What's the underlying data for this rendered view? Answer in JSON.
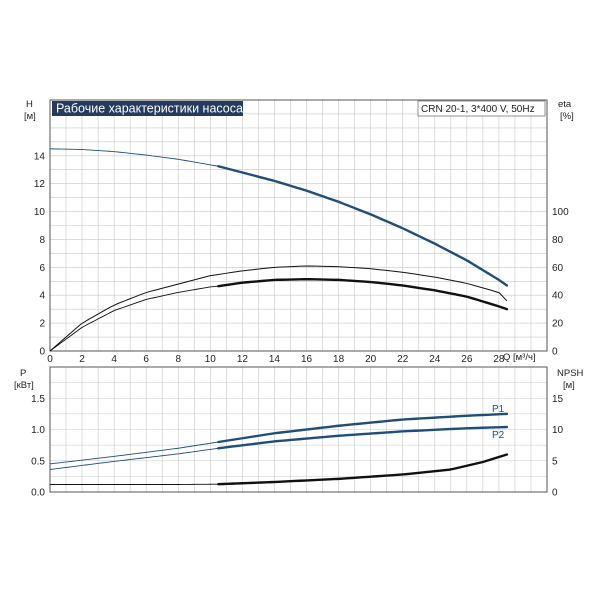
{
  "title": "Рабочие характеристики насоса",
  "model": "CRN 20-1, 3*400 V, 50Hz",
  "colors": {
    "accent": "#1f4e79",
    "black": "#111111",
    "grid": "#c8c8c8",
    "title_bg": "#243a5e"
  },
  "axes": {
    "top_left": {
      "name": "H",
      "unit": "[м]",
      "ticks": [
        "0",
        "2",
        "4",
        "6",
        "8",
        "10",
        "12",
        "14"
      ]
    },
    "top_right": {
      "name": "eta",
      "unit": "[%]",
      "ticks": [
        "0",
        "20",
        "40",
        "60",
        "80",
        "100"
      ]
    },
    "x": {
      "name": "Q",
      "unit": "[м³/ч]",
      "ticks": [
        "0",
        "2",
        "4",
        "6",
        "8",
        "10",
        "12",
        "14",
        "16",
        "18",
        "20",
        "22",
        "24",
        "26",
        "28"
      ]
    },
    "bottom_left": {
      "name": "P",
      "unit": "[кВт]",
      "ticks": [
        "0.0",
        "0.5",
        "1.0",
        "1.5"
      ]
    },
    "bottom_right": {
      "name": "NPSH",
      "unit": "[м]",
      "ticks": [
        "0",
        "5",
        "10",
        "15"
      ]
    }
  },
  "legend": {
    "p1": "P1",
    "p2": "P2"
  },
  "chart_data": [
    {
      "type": "line",
      "title": "Рабочие характеристики насоса",
      "xlabel": "Q [м³/ч]",
      "ylabel": "H [м]",
      "y2label": "eta [%]",
      "xlim": [
        0,
        31
      ],
      "ylim": [
        0,
        18
      ],
      "y2lim": [
        0,
        180
      ],
      "grid": true,
      "series": [
        {
          "key": "H",
          "axis": "left",
          "style": "blue",
          "duty_from": 10.5,
          "x": [
            0,
            2,
            4,
            6,
            8,
            10,
            10.5,
            12,
            14,
            16,
            18,
            20,
            22,
            24,
            26,
            28,
            28.5
          ],
          "values": [
            14.5,
            14.45,
            14.3,
            14.05,
            13.75,
            13.35,
            13.25,
            12.8,
            12.2,
            11.5,
            10.7,
            9.8,
            8.8,
            7.7,
            6.5,
            5.1,
            4.7
          ]
        },
        {
          "key": "eta_upper",
          "axis": "right",
          "style": "black",
          "duty_from": null,
          "x": [
            0,
            2,
            4,
            6,
            8,
            10,
            12,
            14,
            16,
            18,
            20,
            22,
            24,
            26,
            28,
            28.5
          ],
          "values": [
            0,
            20,
            33,
            42,
            48,
            54,
            57.5,
            60,
            61,
            60.5,
            59,
            56.5,
            53,
            48.5,
            42,
            36
          ]
        },
        {
          "key": "eta_lower",
          "axis": "right",
          "style": "black",
          "duty_from": 10.5,
          "x": [
            0,
            2,
            4,
            6,
            8,
            10,
            10.5,
            12,
            14,
            16,
            18,
            20,
            22,
            24,
            26,
            28,
            28.5
          ],
          "values": [
            0,
            17,
            29,
            37,
            42,
            46,
            46.5,
            49,
            51,
            51.5,
            51,
            49.5,
            47,
            43.5,
            39,
            32,
            30
          ]
        }
      ]
    },
    {
      "type": "line",
      "xlabel": "Q [м³/ч]",
      "ylabel": "P [кВт]",
      "y2label": "NPSH [м]",
      "xlim": [
        0,
        31
      ],
      "ylim": [
        0,
        2
      ],
      "y2lim": [
        0,
        20
      ],
      "grid": true,
      "series": [
        {
          "key": "P1",
          "name": "P1",
          "axis": "left",
          "style": "blue",
          "duty_from": 10.5,
          "x": [
            0,
            4,
            8,
            10.5,
            14,
            18,
            22,
            26,
            28.5
          ],
          "values": [
            0.45,
            0.57,
            0.7,
            0.8,
            0.94,
            1.06,
            1.16,
            1.22,
            1.25
          ]
        },
        {
          "key": "P2",
          "name": "P2",
          "axis": "left",
          "style": "blue",
          "duty_from": 10.5,
          "x": [
            0,
            4,
            8,
            10.5,
            14,
            18,
            22,
            26,
            28.5
          ],
          "values": [
            0.36,
            0.49,
            0.61,
            0.7,
            0.81,
            0.9,
            0.97,
            1.02,
            1.04
          ]
        },
        {
          "key": "NPSH",
          "axis": "right",
          "style": "black",
          "duty_from": 10.5,
          "x": [
            0,
            4,
            8,
            10.5,
            14,
            18,
            22,
            25,
            27,
            28.5
          ],
          "values": [
            1.2,
            1.2,
            1.2,
            1.25,
            1.6,
            2.1,
            2.8,
            3.6,
            4.8,
            6.0
          ]
        }
      ]
    }
  ]
}
